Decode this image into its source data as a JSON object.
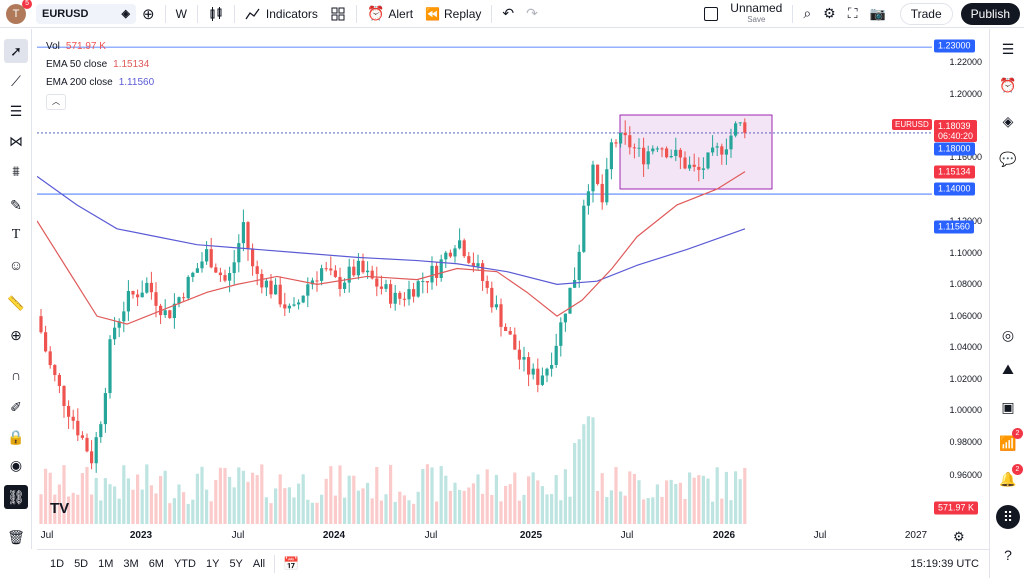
{
  "header": {
    "avatar_letter": "T",
    "avatar_badge": "5",
    "symbol": "EURUSD",
    "interval": "W",
    "indicators_label": "Indicators",
    "alert_label": "Alert",
    "replay_label": "Replay",
    "layout_name": "Unnamed",
    "layout_save": "Save",
    "trade_label": "Trade",
    "publish_label": "Publish"
  },
  "legend": {
    "vol_label": "Vol",
    "vol_value": "571.97 K",
    "ema50_label": "EMA 50 close",
    "ema50_value": "1.15134",
    "ema200_label": "EMA 200 close",
    "ema200_value": "1.11560"
  },
  "price_axis": {
    "ticks": [
      "1.22000",
      "1.20000",
      "1.16000",
      "1.12000",
      "1.10000",
      "1.08000",
      "1.06000",
      "1.04000",
      "1.02000",
      "1.00000",
      "0.98000",
      "0.96000"
    ],
    "tags": {
      "line_top": "1.23000",
      "symbol": "EURUSD",
      "last_price": "1.18039",
      "countdown": "06:40:20",
      "level_1": "1.18000",
      "ema50": "1.15134",
      "level_2": "1.14000",
      "ema200": "1.11560",
      "volume": "571.97 K"
    }
  },
  "time_axis": {
    "labels": [
      "Jul",
      "2023",
      "Jul",
      "2024",
      "Jul",
      "2025",
      "Jul",
      "2026",
      "Jul",
      "2027"
    ]
  },
  "bottom": {
    "ranges": [
      "1D",
      "5D",
      "1M",
      "3M",
      "6M",
      "YTD",
      "1Y",
      "5Y",
      "All"
    ],
    "clock": "15:19:39 UTC"
  },
  "right_badges": {
    "signals": "2",
    "notifications": "2"
  },
  "colors": {
    "up": "#26a69a",
    "down": "#ef5350",
    "ema50": "#e05a5a",
    "ema200": "#5b5bd6",
    "hline": "#2962ff",
    "box": "#9c27b0"
  },
  "chart_data": {
    "type": "candlestick",
    "ema_series": [
      {
        "name": "EMA 50 close",
        "last": 1.15134
      },
      {
        "name": "EMA 200 close",
        "last": 1.1156
      }
    ],
    "horizontal_lines": [
      1.23,
      1.18039,
      1.14
    ],
    "price_range": [
      0.94,
      1.23
    ]
  }
}
